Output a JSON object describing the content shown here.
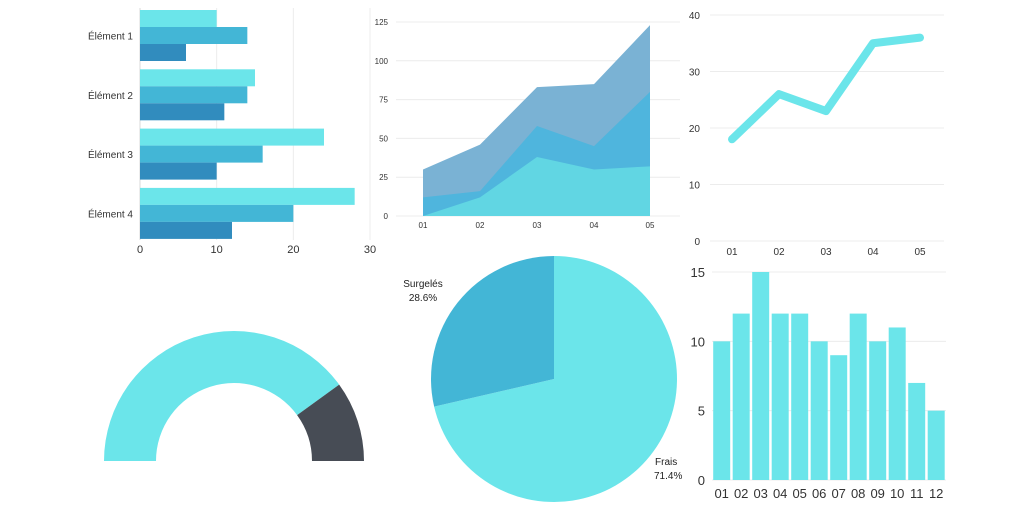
{
  "colors": {
    "cyan_light": "#6be5ea",
    "cyan_mid": "#43b6d6",
    "blue_dark": "#318cbe",
    "area_back": "#7ab2d4",
    "area_mid": "#4fb5dd",
    "area_front": "#61d6e3",
    "gauge_dark": "#474c55",
    "axis_text": "#333333",
    "grid": "#ececec"
  },
  "chart_data": [
    {
      "type": "bar",
      "orientation": "horizontal",
      "categories": [
        "Élément 1",
        "Élément 2",
        "Élément 3",
        "Élément 4"
      ],
      "series": [
        {
          "values": [
            10,
            15,
            24,
            28
          ]
        },
        {
          "values": [
            14,
            14,
            16,
            20
          ]
        },
        {
          "values": [
            6,
            11,
            10,
            12
          ]
        }
      ],
      "x_ticks": [
        "0",
        "10",
        "20",
        "30"
      ],
      "xlim": [
        0,
        30
      ]
    },
    {
      "type": "area",
      "stacked": true,
      "categories": [
        "01",
        "02",
        "03",
        "04",
        "05"
      ],
      "series": [
        {
          "values": [
            0,
            12,
            38,
            30,
            32
          ]
        },
        {
          "values": [
            12,
            4,
            20,
            15,
            48
          ]
        },
        {
          "values": [
            18,
            30,
            25,
            40,
            43
          ]
        }
      ],
      "y_ticks": [
        "0",
        "25",
        "50",
        "75",
        "100",
        "125"
      ],
      "ylim": [
        0,
        125
      ]
    },
    {
      "type": "line",
      "categories": [
        "01",
        "02",
        "03",
        "04",
        "05"
      ],
      "values": [
        18,
        26,
        23,
        35,
        36
      ],
      "y_ticks": [
        "0",
        "10",
        "20",
        "30",
        "40"
      ],
      "ylim": [
        0,
        40
      ]
    },
    {
      "type": "pie",
      "variant": "half-donut",
      "slices": [
        {
          "value": 0.8
        },
        {
          "value": 0.2
        }
      ]
    },
    {
      "type": "pie",
      "slices": [
        {
          "label": "Frais",
          "percent_label": "71.4%",
          "value": 71.4
        },
        {
          "label": "Surgelés",
          "percent_label": "28.6%",
          "value": 28.6
        }
      ]
    },
    {
      "type": "bar",
      "categories": [
        "01",
        "02",
        "03",
        "04",
        "05",
        "06",
        "07",
        "08",
        "09",
        "10",
        "11",
        "12"
      ],
      "values": [
        10,
        12,
        15,
        12,
        12,
        10,
        9,
        12,
        10,
        11,
        7,
        5
      ],
      "y_ticks": [
        "0",
        "5",
        "10",
        "15"
      ],
      "ylim": [
        0,
        15
      ]
    }
  ]
}
